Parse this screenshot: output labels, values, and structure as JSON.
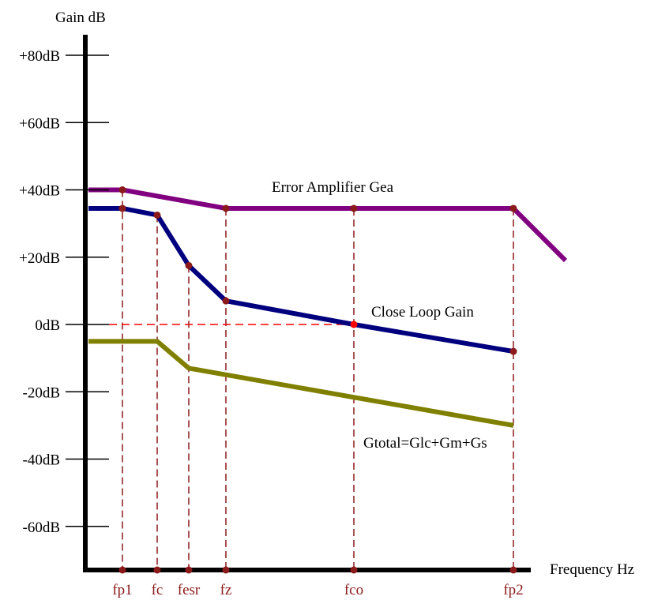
{
  "chart_data": {
    "type": "line",
    "ylabel": "Gain dB",
    "xlabel": "Frequency Hz",
    "y_ticks": [
      {
        "label": "+80dB",
        "value": 80
      },
      {
        "label": "+60dB",
        "value": 60
      },
      {
        "label": "+40dB",
        "value": 40
      },
      {
        "label": "+20dB",
        "value": 20
      },
      {
        "label": "0dB",
        "value": 0
      },
      {
        "label": "-20dB",
        "value": -20
      },
      {
        "label": "-40dB",
        "value": -40
      },
      {
        "label": "-60dB",
        "value": -60
      }
    ],
    "ylim": [
      -73,
      92
    ],
    "x_markers": [
      "fp1",
      "fc",
      "fesr",
      "fz",
      "fco",
      "fp2"
    ],
    "series": [
      {
        "name": "Error Amplifier Gea",
        "color": "#800080",
        "points": [
          {
            "x": "start",
            "y": 40
          },
          {
            "x": "fp1",
            "y": 40
          },
          {
            "x": "fz",
            "y": 34.5
          },
          {
            "x": "fco",
            "y": 34.5
          },
          {
            "x": "fp2",
            "y": 34.5
          },
          {
            "x": "end",
            "y": 19
          }
        ]
      },
      {
        "name": "Close Loop Gain",
        "color": "#00007f",
        "points": [
          {
            "x": "start",
            "y": 34.5
          },
          {
            "x": "fp1",
            "y": 34.5
          },
          {
            "x": "fc",
            "y": 32.5
          },
          {
            "x": "fesr",
            "y": 17.5
          },
          {
            "x": "fz",
            "y": 7
          },
          {
            "x": "fco",
            "y": 0
          },
          {
            "x": "fp2",
            "y": -8
          }
        ]
      },
      {
        "name": "Gtotal=Glc+Gm+Gs",
        "color": "#808000",
        "points": [
          {
            "x": "start",
            "y": -5
          },
          {
            "x": "fc",
            "y": -5
          },
          {
            "x": "fesr",
            "y": -13
          },
          {
            "x": "fp2",
            "y": -30
          }
        ]
      }
    ],
    "zero_line_to": "fco",
    "marker_color": "#8b1a1a"
  }
}
